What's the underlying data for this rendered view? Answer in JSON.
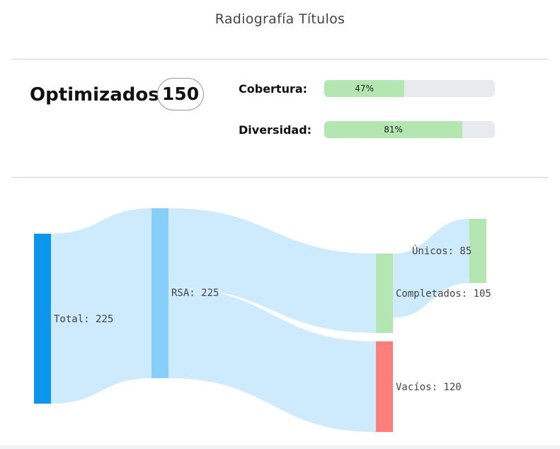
{
  "title": "Radiografía Títulos",
  "summary": {
    "label": "Optimizados",
    "count": "150"
  },
  "metrics": [
    {
      "label": "Cobertura:",
      "percent": 47,
      "text": "47%"
    },
    {
      "label": "Diversidad:",
      "percent": 81,
      "text": "81%"
    }
  ],
  "colors": {
    "bar_fill": "#b3e6b0",
    "bar_track": "#e8ebee",
    "link": "#cdebfc",
    "node_total": "#0e96ec",
    "node_rsa": "#87cefa",
    "node_completados": "#b3e6b0",
    "node_unicos": "#b3e6b0",
    "node_vacios": "#fd7f7b"
  },
  "chart_data": {
    "type": "sankey",
    "nodes": [
      {
        "id": "total",
        "label": "Total: 225",
        "name": "Total",
        "value": 225
      },
      {
        "id": "rsa",
        "label": "RSA: 225",
        "name": "RSA",
        "value": 225
      },
      {
        "id": "completados",
        "label": "Completados: 105",
        "name": "Completados",
        "value": 105
      },
      {
        "id": "vacios",
        "label": "Vacíos: 120",
        "name": "Vacíos",
        "value": 120
      },
      {
        "id": "unicos",
        "label": "Únicos: 85",
        "name": "Únicos",
        "value": 85
      }
    ],
    "links": [
      {
        "source": "total",
        "target": "rsa",
        "value": 225
      },
      {
        "source": "rsa",
        "target": "completados",
        "value": 105
      },
      {
        "source": "rsa",
        "target": "vacios",
        "value": 120
      },
      {
        "source": "completados",
        "target": "unicos",
        "value": 85
      }
    ]
  }
}
